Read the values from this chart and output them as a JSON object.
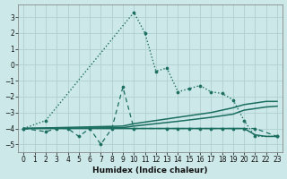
{
  "xlabel": "Humidex (Indice chaleur)",
  "xlim": [
    -0.5,
    23.5
  ],
  "ylim": [
    -5.5,
    3.8
  ],
  "yticks": [
    -5,
    -4,
    -3,
    -2,
    -1,
    0,
    1,
    2,
    3
  ],
  "xticks": [
    0,
    1,
    2,
    3,
    4,
    5,
    6,
    7,
    8,
    9,
    10,
    11,
    12,
    13,
    14,
    15,
    16,
    17,
    18,
    19,
    20,
    21,
    22,
    23
  ],
  "bg_color": "#cde8e8",
  "grid_color": "#b0d0d0",
  "line_color": "#1a6e60",
  "s1_x": [
    0,
    2,
    10,
    11,
    12,
    13,
    14,
    15,
    16,
    17,
    18,
    19,
    20,
    21,
    23
  ],
  "s1_y": [
    -4.0,
    -3.5,
    3.3,
    2.0,
    -0.4,
    -0.2,
    -1.7,
    -1.5,
    -1.3,
    -1.7,
    -1.8,
    -2.2,
    -3.5,
    -4.5,
    -4.5
  ],
  "s1_style": "dotted",
  "s2_x": [
    0,
    2,
    3,
    4,
    5,
    6,
    7,
    8,
    9,
    10,
    13,
    14,
    15,
    16,
    17,
    18,
    19,
    20,
    21,
    23
  ],
  "s2_y": [
    -4.0,
    -4.2,
    -4.0,
    -4.0,
    -4.5,
    -4.0,
    -5.0,
    -4.0,
    -1.4,
    -4.0,
    -4.0,
    -4.0,
    -4.0,
    -4.0,
    -4.0,
    -4.0,
    -4.0,
    -4.0,
    -4.0,
    -4.5
  ],
  "s2_style": "dashed",
  "s3_x": [
    0,
    9,
    10,
    14,
    17,
    19,
    20,
    22,
    23
  ],
  "s3_y": [
    -4.0,
    -3.85,
    -3.7,
    -3.3,
    -3.0,
    -2.7,
    -2.5,
    -2.3,
    -2.3
  ],
  "s3_style": "solid",
  "s4_x": [
    0,
    9,
    10,
    14,
    17,
    19,
    20,
    22,
    23
  ],
  "s4_y": [
    -4.0,
    -3.95,
    -3.85,
    -3.55,
    -3.3,
    -3.1,
    -2.85,
    -2.65,
    -2.6
  ],
  "s4_style": "solid",
  "s5_x": [
    0,
    9,
    10,
    20,
    21,
    22,
    23
  ],
  "s5_y": [
    -4.0,
    -4.0,
    -4.0,
    -4.0,
    -4.4,
    -4.5,
    -4.5
  ],
  "s5_style": "solid"
}
